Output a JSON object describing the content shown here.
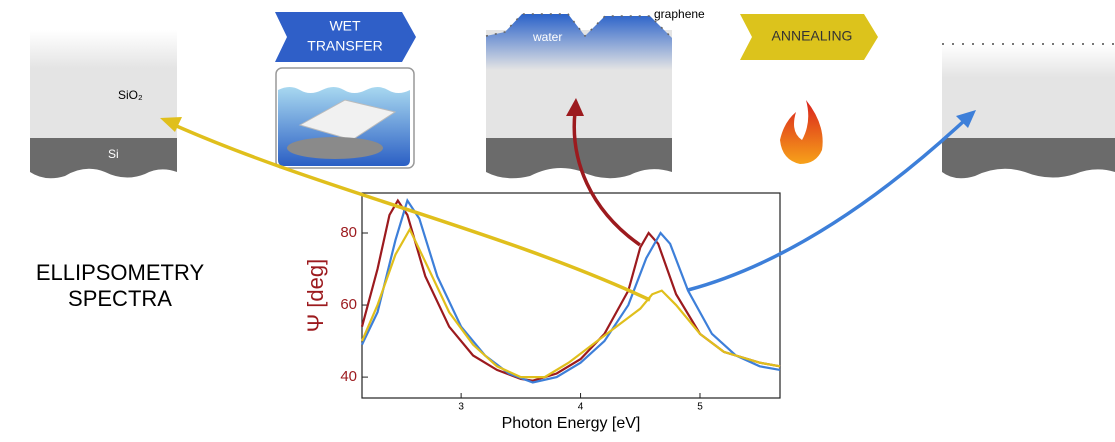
{
  "labels": {
    "wet_transfer": [
      "WET",
      "TRANSFER"
    ],
    "water": "water",
    "graphene": "graphene",
    "annealing": "ANNEALING",
    "sio2": "SiO₂",
    "si": "Si",
    "ellipsometry": [
      "ELLIPSOMETRY",
      "SPECTRA"
    ]
  },
  "chart_data": {
    "type": "line",
    "x_label": "Photon Energy [eV]",
    "y_label": "Ψ [deg]",
    "xlim": [
      2.17,
      5.67
    ],
    "ylim": [
      34.2,
      91.1
    ],
    "xticks": [
      3,
      4,
      5
    ],
    "yticks": [
      40,
      60,
      80
    ],
    "series": [
      {
        "color": "#9c1a1e",
        "x": [
          2.17,
          2.3,
          2.4,
          2.47,
          2.55,
          2.7,
          2.9,
          3.1,
          3.3,
          3.5,
          3.6,
          3.8,
          4.0,
          4.2,
          4.4,
          4.5,
          4.57,
          4.65,
          4.8,
          5.0,
          5.2,
          5.5,
          5.67
        ],
        "values": [
          54,
          70,
          85,
          89,
          85,
          68,
          54,
          46,
          42,
          39.5,
          39,
          41,
          45,
          52,
          64,
          76,
          80,
          77,
          63,
          52,
          47,
          44,
          43
        ]
      },
      {
        "color": "#3d7fd9",
        "x": [
          2.17,
          2.3,
          2.45,
          2.55,
          2.65,
          2.8,
          3.0,
          3.2,
          3.4,
          3.6,
          3.8,
          4.0,
          4.2,
          4.4,
          4.55,
          4.67,
          4.75,
          4.9,
          5.1,
          5.3,
          5.5,
          5.67
        ],
        "values": [
          49,
          58,
          78,
          89,
          84,
          68,
          54,
          46,
          41,
          38.5,
          40,
          44,
          50,
          60,
          73,
          80,
          77,
          64,
          52,
          46,
          43,
          42
        ]
      },
      {
        "color": "#e0bf1c",
        "x": [
          2.17,
          2.3,
          2.45,
          2.57,
          2.7,
          2.9,
          3.1,
          3.3,
          3.5,
          3.7,
          3.9,
          4.1,
          4.3,
          4.5,
          4.6,
          4.68,
          4.8,
          5.0,
          5.2,
          5.5,
          5.67
        ],
        "values": [
          50,
          60,
          74,
          81,
          72,
          58,
          49,
          43,
          40,
          40,
          44,
          49,
          54,
          59,
          63,
          64,
          60,
          52,
          47,
          44,
          43
        ]
      }
    ]
  }
}
